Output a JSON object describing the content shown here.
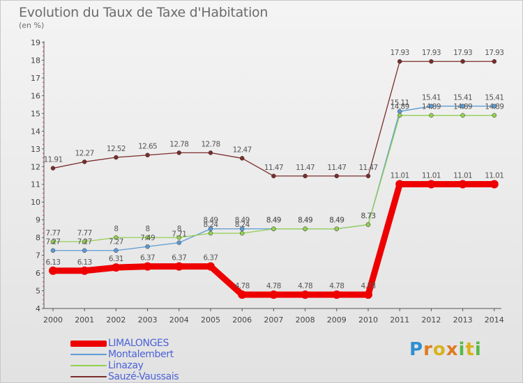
{
  "title": "Evolution du Taux de Taxe d'Habitation",
  "unit_label": "(en %)",
  "logo": {
    "text": "Proxiti",
    "colors": [
      "#2f8fd1",
      "#e07a1f",
      "#58b947",
      "#d8b21c"
    ]
  },
  "chart_data": {
    "type": "line",
    "title": "Evolution du Taux de Taxe d'Habitation",
    "ylabel": "(en %)",
    "xlabel": "",
    "x": [
      "2000",
      "2001",
      "2002",
      "2003",
      "2004",
      "2005",
      "2006",
      "2007",
      "2008",
      "2009",
      "2010",
      "2011",
      "2012",
      "2013",
      "2014"
    ],
    "ylim": [
      4,
      19
    ],
    "yticks": [
      "4",
      "5",
      "6",
      "7",
      "8",
      "9",
      "10",
      "11",
      "12",
      "13",
      "14",
      "15",
      "16",
      "17",
      "18",
      "19"
    ],
    "grid": false,
    "legend_position": "bottom-left",
    "series": [
      {
        "name": "LIMALONGES",
        "color": "#ee0000",
        "emphasis": true,
        "values": [
          6.13,
          6.13,
          6.31,
          6.37,
          6.37,
          6.37,
          4.78,
          4.78,
          4.78,
          4.78,
          4.78,
          11.01,
          11.01,
          11.01,
          11.01
        ],
        "labels": [
          "6.13",
          "6.13",
          "6.31",
          "6.37",
          "6.37",
          "6.37",
          "4.78",
          "4.78",
          "4.78",
          "4.78",
          "4.78",
          "11.01",
          "11.01",
          "11.01",
          "11.01"
        ]
      },
      {
        "name": "Montalembert",
        "color": "#5b9bd5",
        "emphasis": false,
        "values": [
          7.27,
          7.27,
          7.27,
          7.49,
          7.71,
          8.49,
          8.49,
          8.49,
          8.49,
          8.49,
          8.73,
          15.11,
          15.41,
          15.41,
          15.41
        ],
        "labels": [
          "7.27",
          "7.27",
          "7.27",
          "7.49",
          "7.71",
          "8.49",
          "8.49",
          "8.49",
          "8.49",
          "8.49",
          "8.73",
          "15.11",
          "15.41",
          "15.41",
          "15.41"
        ]
      },
      {
        "name": "Linazay",
        "color": "#92d050",
        "emphasis": false,
        "values": [
          7.77,
          7.77,
          8,
          8,
          8,
          8.24,
          8.24,
          8.49,
          8.49,
          8.49,
          8.73,
          14.89,
          14.89,
          14.89,
          14.89
        ],
        "labels": [
          "7.77",
          "7.77",
          "8",
          "8",
          "8",
          "8.24",
          "8.24",
          "8.49",
          "8.49",
          "8.49",
          "8.73",
          "14.89",
          "14.89",
          "14.89",
          "14.89"
        ]
      },
      {
        "name": "Sauzé-Vaussais",
        "color": "#7b2c2c",
        "emphasis": false,
        "values": [
          11.91,
          12.27,
          12.52,
          12.65,
          12.78,
          12.78,
          12.47,
          11.47,
          11.47,
          11.47,
          11.47,
          17.93,
          17.93,
          17.93,
          17.93
        ],
        "labels": [
          "11.91",
          "12.27",
          "12.52",
          "12.65",
          "12.78",
          "12.78",
          "12.47",
          "11.47",
          "11.47",
          "11.47",
          "11.47",
          "17.93",
          "17.93",
          "17.93",
          "17.93"
        ]
      }
    ]
  }
}
